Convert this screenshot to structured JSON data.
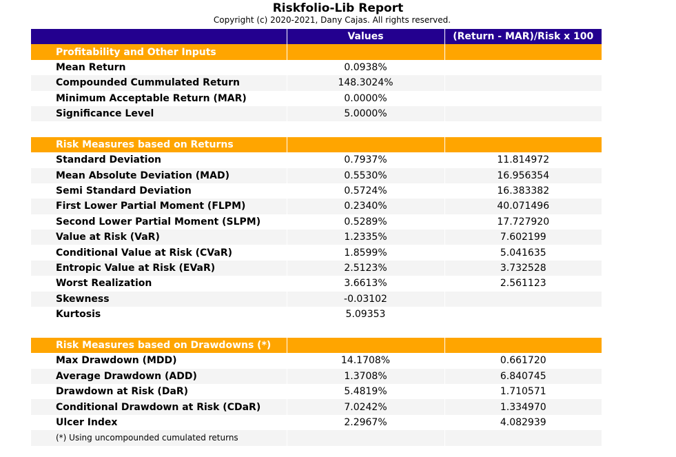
{
  "report": {
    "title": "Riskfolio-Lib Report",
    "copyright": "Copyright (c) 2020-2021, Dany Cajas. All rights reserved."
  },
  "table": {
    "headers": [
      "",
      "Values",
      "(Return - MAR)/Risk x 100"
    ],
    "sections": [
      {
        "title": "Profitability and Other Inputs",
        "rows": [
          {
            "name": "Mean Return",
            "value": "0.0938%",
            "ratio": ""
          },
          {
            "name": "Compounded Cummulated Return",
            "value": "148.3024%",
            "ratio": ""
          },
          {
            "name": "Minimum Acceptable Return (MAR)",
            "value": "0.0000%",
            "ratio": ""
          },
          {
            "name": "Significance Level",
            "value": "5.0000%",
            "ratio": ""
          }
        ]
      },
      {
        "title": "Risk Measures based on Returns",
        "rows": [
          {
            "name": "Standard Deviation",
            "value": "0.7937%",
            "ratio": "11.814972"
          },
          {
            "name": "Mean Absolute Deviation (MAD)",
            "value": "0.5530%",
            "ratio": "16.956354"
          },
          {
            "name": "Semi Standard Deviation",
            "value": "0.5724%",
            "ratio": "16.383382"
          },
          {
            "name": "First Lower Partial Moment (FLPM)",
            "value": "0.2340%",
            "ratio": "40.071496"
          },
          {
            "name": "Second Lower Partial Moment (SLPM)",
            "value": "0.5289%",
            "ratio": "17.727920"
          },
          {
            "name": "Value at Risk (VaR)",
            "value": "1.2335%",
            "ratio": "7.602199"
          },
          {
            "name": "Conditional Value at Risk (CVaR)",
            "value": "1.8599%",
            "ratio": "5.041635"
          },
          {
            "name": "Entropic Value at Risk (EVaR)",
            "value": "2.5123%",
            "ratio": "3.732528"
          },
          {
            "name": "Worst Realization",
            "value": "3.6613%",
            "ratio": "2.561123"
          },
          {
            "name": "Skewness",
            "value": "-0.03102",
            "ratio": ""
          },
          {
            "name": "Kurtosis",
            "value": "5.09353",
            "ratio": ""
          }
        ]
      },
      {
        "title": "Risk Measures based on Drawdowns (*)",
        "rows": [
          {
            "name": "Max Drawdown (MDD)",
            "value": "14.1708%",
            "ratio": "0.661720"
          },
          {
            "name": "Average Drawdown (ADD)",
            "value": "1.3708%",
            "ratio": "6.840745"
          },
          {
            "name": "Drawdown at Risk (DaR)",
            "value": "5.4819%",
            "ratio": "1.710571"
          },
          {
            "name": "Conditional Drawdown at Risk (CDaR)",
            "value": "7.0242%",
            "ratio": "1.334970"
          },
          {
            "name": "Ulcer Index",
            "value": "2.2967%",
            "ratio": "4.082939"
          }
        ]
      }
    ],
    "footnote": "(*) Using uncompounded cumulated returns"
  }
}
